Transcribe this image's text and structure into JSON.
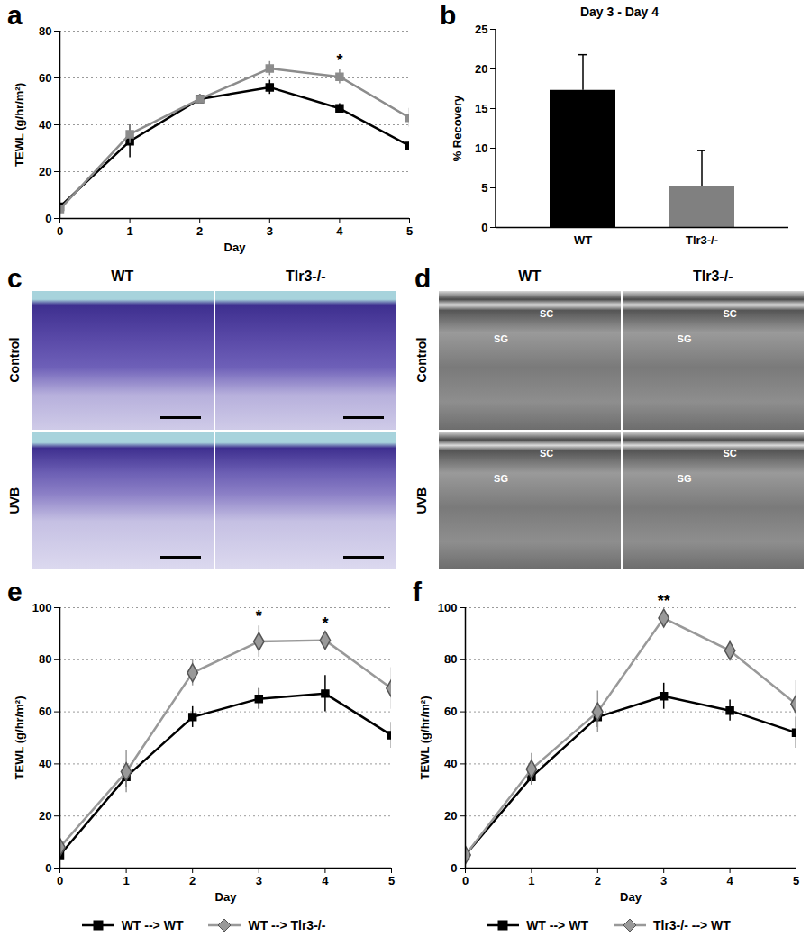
{
  "chart_data": [
    {
      "panel": "a",
      "type": "line",
      "x": [
        0,
        1,
        2,
        3,
        4,
        5
      ],
      "xlim": [
        0,
        5
      ],
      "xticks": [
        0,
        1,
        2,
        3,
        4,
        5
      ],
      "xlabel": "Day",
      "ylabel": "TEWL (g/hr/m²)",
      "ylim": [
        0,
        80
      ],
      "yticks": [
        0,
        20,
        40,
        60,
        80
      ],
      "grid": true,
      "series": [
        {
          "color": "#000000",
          "marker": "square",
          "values": [
            5,
            33,
            51,
            56,
            47,
            31
          ],
          "errors": [
            1,
            7,
            2,
            3,
            2,
            2
          ]
        },
        {
          "color": "#8c8c8c",
          "marker": "square",
          "values": [
            4,
            36,
            51,
            64,
            60.5,
            43
          ],
          "errors": [
            1,
            4,
            2,
            3,
            3,
            4
          ]
        }
      ],
      "annotations": [
        {
          "x": 4,
          "text": "*"
        }
      ]
    },
    {
      "panel": "b",
      "type": "bar",
      "title": "Day 3 - Day 4",
      "ylabel": "% Recovery",
      "categories": [
        "WT",
        "Tlr3-/-"
      ],
      "values": [
        17.3,
        5.2
      ],
      "errors": [
        4.5,
        4.5
      ],
      "colors": [
        "#000000",
        "#808080"
      ],
      "ylim": [
        0,
        25
      ],
      "yticks": [
        0,
        5,
        10,
        15,
        20,
        25
      ]
    },
    {
      "panel": "c",
      "type": "image_grid",
      "columns": [
        "WT",
        "Tlr3-/-"
      ],
      "rows": [
        "Control",
        "UVB"
      ]
    },
    {
      "panel": "d",
      "type": "image_grid",
      "columns": [
        "WT",
        "Tlr3-/-"
      ],
      "rows": [
        "Control",
        "UVB"
      ],
      "cell_labels": [
        "SC",
        "SG"
      ]
    },
    {
      "panel": "e",
      "type": "line",
      "x": [
        0,
        1,
        2,
        3,
        4,
        5
      ],
      "xlim": [
        0,
        5
      ],
      "xticks": [
        0,
        1,
        2,
        3,
        4,
        5
      ],
      "xlabel": "Day",
      "ylabel": "TEWL (g/hr/m²)",
      "ylim": [
        0,
        100
      ],
      "yticks": [
        0,
        20,
        40,
        60,
        80,
        100
      ],
      "grid": true,
      "legend": "bottom",
      "series": [
        {
          "name": "WT --> WT",
          "color": "#000000",
          "marker": "square",
          "values": [
            5,
            35,
            58,
            65,
            67,
            51
          ],
          "errors": [
            1,
            4,
            4,
            4,
            7,
            5
          ]
        },
        {
          "name": "WT --> Tlr3-/-",
          "color": "#999999",
          "marker": "diamond",
          "values": [
            8,
            37,
            75,
            87,
            87.5,
            69
          ],
          "errors": [
            1,
            8,
            5,
            6,
            3,
            8
          ]
        }
      ],
      "annotations": [
        {
          "x": 3,
          "text": "*"
        },
        {
          "x": 4,
          "text": "*"
        }
      ]
    },
    {
      "panel": "f",
      "type": "line",
      "x": [
        0,
        1,
        2,
        3,
        4,
        5
      ],
      "xlim": [
        0,
        5
      ],
      "xticks": [
        0,
        1,
        2,
        3,
        4,
        5
      ],
      "xlabel": "Day",
      "ylabel": "TEWL (g/hr/m²)",
      "ylim": [
        0,
        100
      ],
      "yticks": [
        0,
        20,
        40,
        60,
        80,
        100
      ],
      "grid": true,
      "legend": "bottom",
      "series": [
        {
          "name": "WT --> WT",
          "color": "#000000",
          "marker": "square",
          "values": [
            5,
            35,
            58,
            66,
            60.5,
            52
          ],
          "errors": [
            1,
            3,
            4,
            5,
            4,
            6
          ]
        },
        {
          "name": "Tlr3-/- --> WT",
          "color": "#999999",
          "marker": "diamond",
          "values": [
            5,
            38,
            60,
            96,
            83.5,
            63
          ],
          "errors": [
            1,
            6,
            8,
            3,
            4,
            9
          ]
        }
      ],
      "annotations": [
        {
          "x": 3,
          "text": "**"
        }
      ]
    }
  ]
}
